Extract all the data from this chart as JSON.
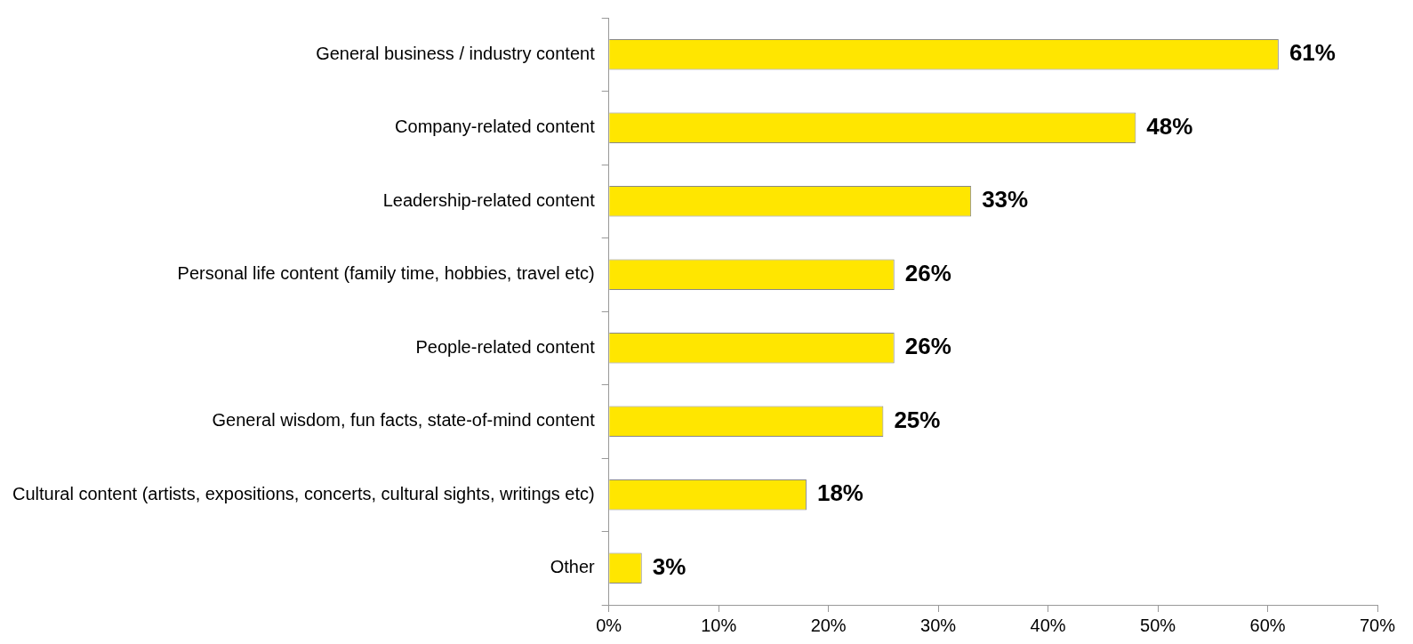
{
  "chart_data": {
    "type": "bar",
    "orientation": "horizontal",
    "categories": [
      "General business / industry content",
      "Company-related content",
      "Leadership-related content",
      "Personal life content (family time, hobbies, travel etc)",
      "People-related content",
      "General wisdom, fun facts, state-of-mind content",
      "Cultural content (artists, expositions, concerts, cultural sights, writings etc)",
      "Other"
    ],
    "values": [
      61,
      48,
      33,
      26,
      26,
      25,
      18,
      3
    ],
    "value_labels": [
      "61%",
      "48%",
      "33%",
      "26%",
      "26%",
      "25%",
      "18%",
      "3%"
    ],
    "color": "#ffe600",
    "xlim": [
      0,
      70
    ],
    "xticks": [
      {
        "value": 0,
        "label": "0%"
      },
      {
        "value": 10,
        "label": "10%"
      },
      {
        "value": 20,
        "label": "20%"
      },
      {
        "value": 30,
        "label": "30%"
      },
      {
        "value": 40,
        "label": "40%"
      },
      {
        "value": 50,
        "label": "50%"
      },
      {
        "value": 60,
        "label": "60%"
      },
      {
        "value": 70,
        "label": "70%"
      }
    ],
    "grid": false,
    "legend": false
  }
}
